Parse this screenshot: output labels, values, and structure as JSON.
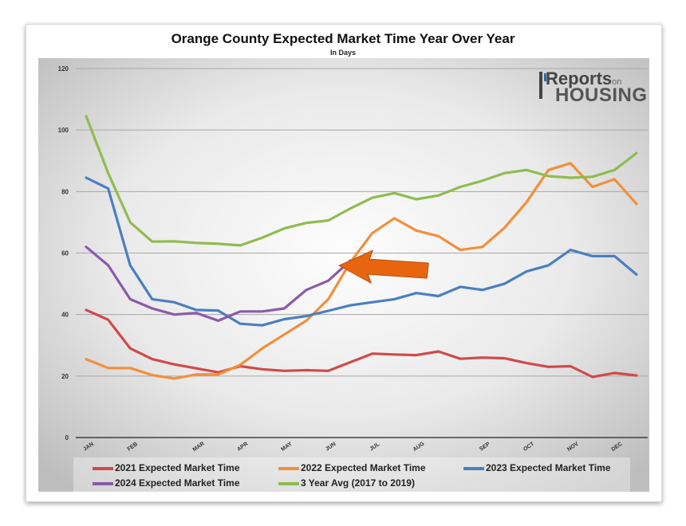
{
  "title": "Orange County Expected Market Time Year Over Year",
  "subtitle": "In Days",
  "logo": {
    "line1_prefix": "eports",
    "line1_big": "R",
    "line1_suffix": "on",
    "line2": "HOUSING"
  },
  "chart_data": {
    "type": "line",
    "ylim": [
      0,
      120
    ],
    "yticks": [
      0,
      20,
      40,
      60,
      80,
      100,
      120
    ],
    "grid": true,
    "legend_position": "bottom",
    "month_labels": [
      {
        "label": "JAN",
        "x": 0
      },
      {
        "label": "FEB",
        "x": 2
      },
      {
        "label": "MAR",
        "x": 5
      },
      {
        "label": "APR",
        "x": 7
      },
      {
        "label": "MAY",
        "x": 9
      },
      {
        "label": "JUN",
        "x": 11
      },
      {
        "label": "JUL",
        "x": 13
      },
      {
        "label": "AUG",
        "x": 15
      },
      {
        "label": "SEP",
        "x": 18
      },
      {
        "label": "OCT",
        "x": 20
      },
      {
        "label": "NOV",
        "x": 22
      },
      {
        "label": "DEC",
        "x": 24
      }
    ],
    "series": [
      {
        "name": "2021 Expected Market Time",
        "color": "#d04a4a",
        "values": [
          41.5,
          38.3,
          29,
          25.5,
          23.8,
          22.5,
          21.2,
          23.2,
          22.2,
          21.7,
          21.9,
          21.7,
          24.5,
          27.3,
          27,
          26.8,
          28,
          25.6,
          26,
          25.8,
          24.2,
          23,
          23.2,
          19.7,
          21,
          20.2
        ]
      },
      {
        "name": "2022 Expected Market Time",
        "color": "#f28f3a",
        "values": [
          25.5,
          22.6,
          22.6,
          20.3,
          19.2,
          20.5,
          20.5,
          23.6,
          29,
          33.5,
          38,
          45,
          57,
          66.5,
          71.3,
          67.3,
          65.5,
          61,
          62,
          68.2,
          76.5,
          87,
          89.2,
          81.5,
          84,
          76
        ]
      },
      {
        "name": "2023 Expected Market Time",
        "color": "#4a7fc1",
        "values": [
          84.5,
          81,
          56,
          45,
          44,
          41.5,
          41.3,
          37,
          36.5,
          38.5,
          39.5,
          41.2,
          43,
          44,
          45,
          47,
          46,
          49,
          48,
          50,
          54,
          56,
          61,
          59,
          59,
          53
        ]
      },
      {
        "name": "2024 Expected Market Time",
        "color": "#8a5aab",
        "values": [
          62,
          56,
          45,
          42,
          40,
          40.5,
          38,
          41,
          41,
          42,
          48,
          51,
          57.5
        ]
      },
      {
        "name": "3 Year Avg (2017 to 2019)",
        "color": "#8fbc4f",
        "values": [
          104.5,
          86,
          70,
          63.7,
          63.8,
          63.3,
          63,
          62.5,
          65,
          68,
          69.8,
          70.6,
          74.5,
          78,
          79.5,
          77.5,
          78.7,
          81.5,
          83.5,
          86,
          87,
          85,
          84.5,
          84.8,
          87,
          92.5
        ]
      }
    ],
    "annotation": {
      "type": "arrow",
      "pointsTo": {
        "x": 12,
        "y": 57.5
      },
      "color": "#e8650f"
    }
  },
  "legend": [
    {
      "label": "2021 Expected Market Time"
    },
    {
      "label": "2022 Expected Market Time"
    },
    {
      "label": "2023 Expected Market Time"
    },
    {
      "label": "2024 Expected Market Time"
    },
    {
      "label": "3 Year Avg (2017 to 2019)"
    }
  ]
}
